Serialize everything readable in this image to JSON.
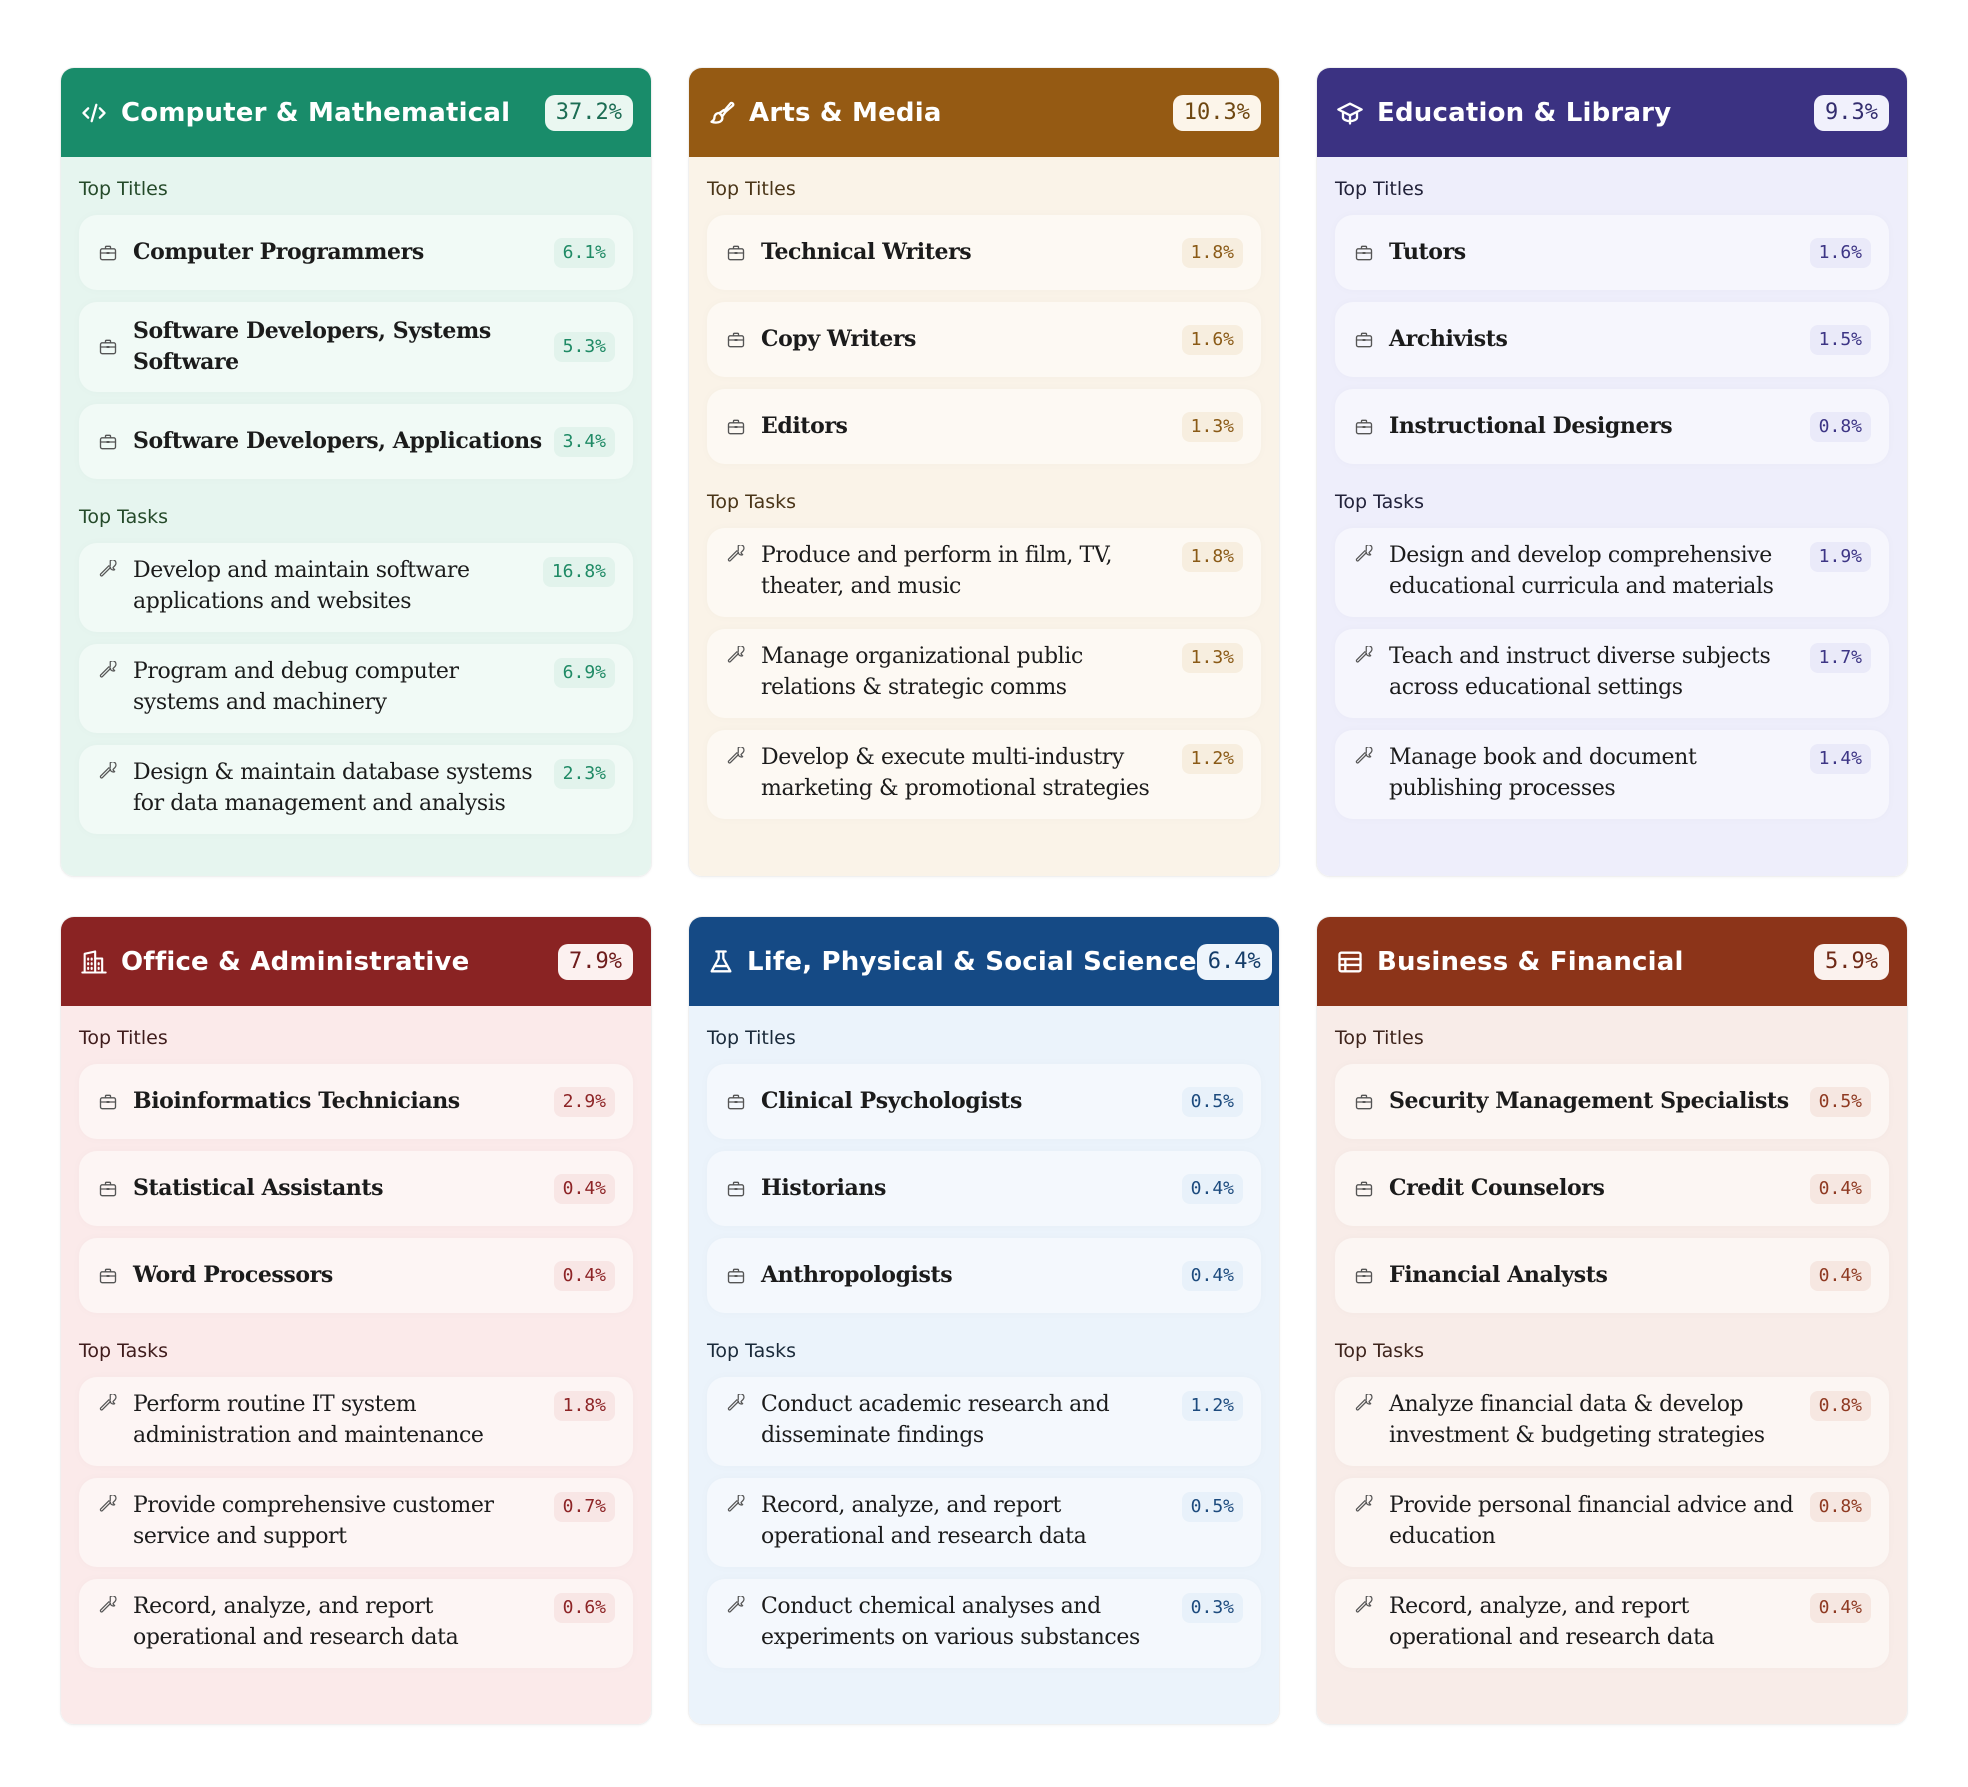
{
  "labels": {
    "top_titles": "Top Titles",
    "top_tasks": "Top Tasks"
  },
  "cards": [
    {
      "title": "Computer & Mathematical",
      "pct": "37.2%",
      "icon": "code-icon",
      "theme": "green",
      "colors": {
        "header": "#198c6a",
        "body": "#e6f5ef",
        "accent": "#1f8a65"
      },
      "titles": [
        {
          "label": "Computer Programmers",
          "pct": "6.1%"
        },
        {
          "label": "Software Developers, Systems Software",
          "pct": "5.3%"
        },
        {
          "label": "Software Developers, Applications",
          "pct": "3.4%"
        }
      ],
      "tasks": [
        {
          "label": "Develop and maintain software applications and websites",
          "pct": "16.8%"
        },
        {
          "label": "Program and debug computer systems and machinery",
          "pct": "6.9%"
        },
        {
          "label": "Design & maintain database systems for data management and analysis",
          "pct": "2.3%"
        }
      ]
    },
    {
      "title": "Arts & Media",
      "pct": "10.3%",
      "icon": "paintbrush-icon",
      "theme": "brown",
      "colors": {
        "header": "#955a13",
        "body": "#faf3e8",
        "accent": "#8a5a16"
      },
      "titles": [
        {
          "label": "Technical Writers",
          "pct": "1.8%"
        },
        {
          "label": "Copy Writers",
          "pct": "1.6%"
        },
        {
          "label": "Editors",
          "pct": "1.3%"
        }
      ],
      "tasks": [
        {
          "label": "Produce and perform in film, TV, theater, and music",
          "pct": "1.8%"
        },
        {
          "label": "Manage organizational public relations & strategic comms",
          "pct": "1.3%"
        },
        {
          "label": "Develop & execute multi-industry marketing & promotional strategies",
          "pct": "1.2%"
        }
      ]
    },
    {
      "title": "Education & Library",
      "pct": "9.3%",
      "icon": "graduation-cap-icon",
      "theme": "purple",
      "colors": {
        "header": "#3b3282",
        "body": "#eeeefb",
        "accent": "#3d3585"
      },
      "titles": [
        {
          "label": "Tutors",
          "pct": "1.6%"
        },
        {
          "label": "Archivists",
          "pct": "1.5%"
        },
        {
          "label": "Instructional Designers",
          "pct": "0.8%"
        }
      ],
      "tasks": [
        {
          "label": "Design and develop comprehensive educational curricula and materials",
          "pct": "1.9%"
        },
        {
          "label": "Teach and instruct diverse subjects across educational settings",
          "pct": "1.7%"
        },
        {
          "label": "Manage book and document publishing processes",
          "pct": "1.4%"
        }
      ]
    },
    {
      "title": "Office & Administrative",
      "pct": "7.9%",
      "icon": "building-icon",
      "theme": "red",
      "colors": {
        "header": "#8a2323",
        "body": "#fbeaea",
        "accent": "#8d2426"
      },
      "titles": [
        {
          "label": "Bioinformatics Technicians",
          "pct": "2.9%"
        },
        {
          "label": "Statistical Assistants",
          "pct": "0.4%"
        },
        {
          "label": "Word Processors",
          "pct": "0.4%"
        }
      ],
      "tasks": [
        {
          "label": "Perform routine IT system administration and maintenance",
          "pct": "1.8%"
        },
        {
          "label": "Provide comprehensive customer service and support",
          "pct": "0.7%"
        },
        {
          "label": "Record, analyze, and report operational and research data",
          "pct": "0.6%"
        }
      ]
    },
    {
      "title": "Life, Physical & Social Science",
      "pct": "6.4%",
      "icon": "flask-icon",
      "theme": "blue",
      "colors": {
        "header": "#154a85",
        "body": "#ebf3fb",
        "accent": "#1d4b7e"
      },
      "titles": [
        {
          "label": "Clinical Psychologists",
          "pct": "0.5%"
        },
        {
          "label": "Historians",
          "pct": "0.4%"
        },
        {
          "label": "Anthropologists",
          "pct": "0.4%"
        }
      ],
      "tasks": [
        {
          "label": "Conduct academic research and disseminate findings",
          "pct": "1.2%"
        },
        {
          "label": "Record, analyze, and report operational and research data",
          "pct": "0.5%"
        },
        {
          "label": "Conduct chemical analyses and experiments on various substances",
          "pct": "0.3%"
        }
      ]
    },
    {
      "title": "Business & Financial",
      "pct": "5.9%",
      "icon": "table-icon",
      "theme": "rust",
      "colors": {
        "header": "#8c3419",
        "body": "#f8ece8",
        "accent": "#8f3a22"
      },
      "titles": [
        {
          "label": "Security Management Specialists",
          "pct": "0.5%"
        },
        {
          "label": "Credit Counselors",
          "pct": "0.4%"
        },
        {
          "label": "Financial Analysts",
          "pct": "0.4%"
        }
      ],
      "tasks": [
        {
          "label": "Analyze financial data & develop investment & budgeting strategies",
          "pct": "0.8%"
        },
        {
          "label": "Provide personal financial advice and education",
          "pct": "0.8%"
        },
        {
          "label": "Record, analyze, and report operational and research data",
          "pct": "0.4%"
        }
      ]
    }
  ]
}
